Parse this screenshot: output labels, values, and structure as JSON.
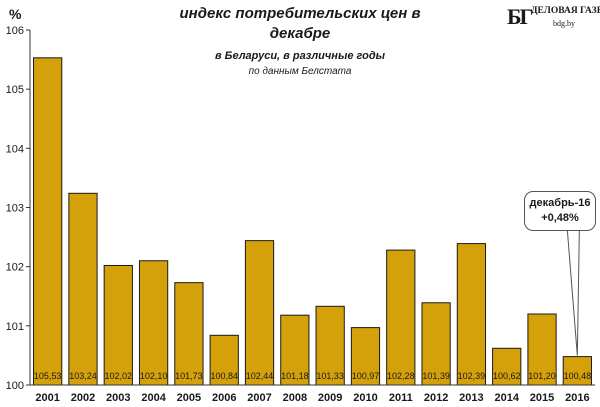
{
  "chart_data": {
    "type": "bar",
    "title": "индекс потребительских цен в декабре",
    "subtitle": "в Беларуси, в различные годы",
    "source": "по данным Белстата",
    "ylabel": "%",
    "ylim": [
      100,
      106
    ],
    "yticks": [
      "100",
      "101",
      "102",
      "103",
      "104",
      "105",
      "106"
    ],
    "grid": false,
    "categories": [
      "2001",
      "2002",
      "2003",
      "2004",
      "2005",
      "2006",
      "2007",
      "2008",
      "2009",
      "2010",
      "2011",
      "2012",
      "2013",
      "2014",
      "2015",
      "2016"
    ],
    "values": [
      105.53,
      103.24,
      102.02,
      102.1,
      101.73,
      100.84,
      102.44,
      101.18,
      101.33,
      100.97,
      102.28,
      101.39,
      102.39,
      100.62,
      101.2,
      100.48
    ],
    "value_labels": [
      "105,53",
      "103,24",
      "102,02",
      "102,10",
      "101,73",
      "100,84",
      "102,44",
      "101,18",
      "101,33",
      "100,97",
      "102,28",
      "101,39",
      "102,39",
      "100,62",
      "101,20",
      "100,48"
    ],
    "bar_color": "#D4A10B",
    "annotation": {
      "line1": "декабрь-16",
      "line2": "+0,48%",
      "points_to": "2016"
    }
  },
  "logo": {
    "mark": "БГ",
    "name": "ДЕЛОВАЯ ГАЗЕТА",
    "url": "bdg.by"
  }
}
